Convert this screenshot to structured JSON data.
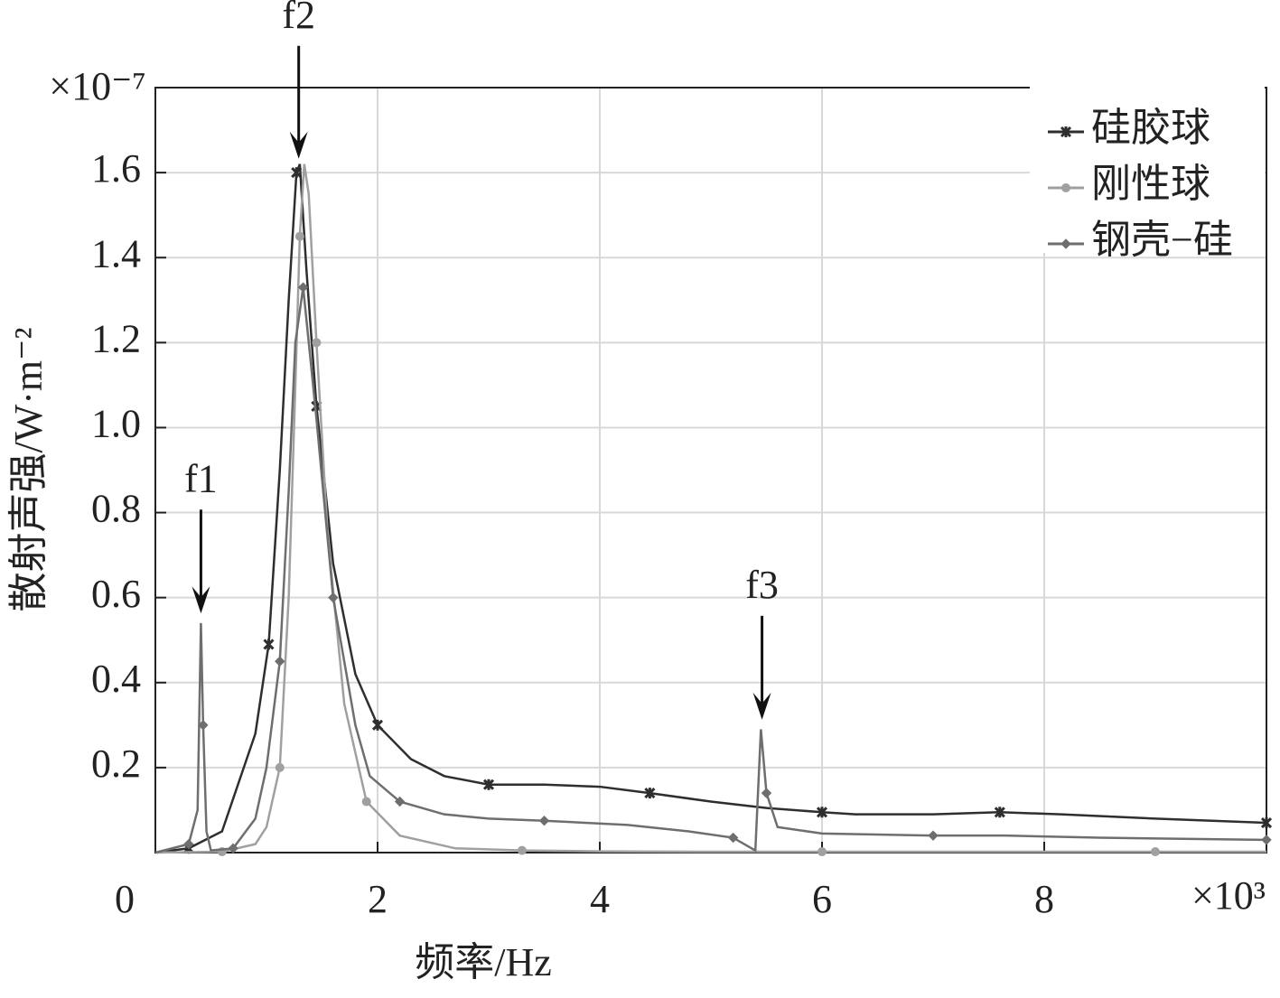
{
  "chart_data": {
    "type": "line",
    "xlabel": "频率/Hz",
    "ylabel": "散射声强/W·m⁻²",
    "x_multiplier": "×10³",
    "y_multiplier": "×10⁻⁷",
    "xlim": [
      0,
      10
    ],
    "xticks": [
      0,
      2,
      4,
      6,
      8
    ],
    "ylim": [
      0,
      1.8
    ],
    "yticks": [
      0.2,
      0.4,
      0.6,
      0.8,
      {
        "value": 1,
        "label": "1.0"
      },
      1.2,
      1.4,
      1.6
    ],
    "grid": true,
    "legend": "upper right",
    "series": [
      {
        "name": "硅胶球",
        "color": "#2e2e2e",
        "marker": "star",
        "x": [
          0,
          0.3,
          0.6,
          0.9,
          1.02,
          1.12,
          1.2,
          1.27,
          1.3,
          1.36,
          1.45,
          1.6,
          1.8,
          2.0,
          2.3,
          2.6,
          3.0,
          3.5,
          4.0,
          4.45,
          5.0,
          5.5,
          6.0,
          6.3,
          7.0,
          7.6,
          8.15,
          9.0,
          10
        ],
        "values": [
          0,
          0.01,
          0.05,
          0.28,
          0.49,
          0.9,
          1.3,
          1.6,
          1.62,
          1.37,
          1.05,
          0.68,
          0.42,
          0.3,
          0.22,
          0.18,
          0.16,
          0.16,
          0.155,
          0.14,
          0.12,
          0.105,
          0.095,
          0.09,
          0.09,
          0.095,
          0.09,
          0.08,
          0.07
        ]
      },
      {
        "name": "刚性球",
        "color": "#a0a0a0",
        "marker": "circle",
        "x": [
          0,
          0.6,
          0.9,
          1.0,
          1.12,
          1.2,
          1.26,
          1.3,
          1.34,
          1.38,
          1.45,
          1.55,
          1.7,
          1.9,
          2.2,
          2.7,
          3.3,
          4.0,
          5.0,
          6.0,
          7.0,
          8.0,
          9.0,
          10
        ],
        "values": [
          0,
          0.002,
          0.02,
          0.06,
          0.2,
          0.6,
          1.1,
          1.45,
          1.62,
          1.55,
          1.2,
          0.75,
          0.35,
          0.12,
          0.04,
          0.01,
          0.005,
          0.003,
          0.002,
          0.002,
          0.002,
          0.002,
          0.002,
          0.002
        ]
      },
      {
        "name": "钢壳−硅",
        "color": "#6e6e6e",
        "marker": "diamond",
        "x": [
          0,
          0.3,
          0.38,
          0.41,
          0.43,
          0.46,
          0.5,
          0.7,
          0.9,
          1.0,
          1.12,
          1.2,
          1.26,
          1.33,
          1.4,
          1.45,
          1.6,
          1.8,
          1.93,
          2.2,
          2.6,
          3.0,
          3.5,
          4.25,
          4.8,
          5.2,
          5.4,
          5.45,
          5.5,
          5.6,
          6.0,
          7.0,
          7.65,
          8.5,
          10
        ],
        "values": [
          0,
          0.02,
          0.1,
          0.54,
          0.3,
          0.05,
          0.005,
          0.01,
          0.08,
          0.2,
          0.45,
          0.85,
          1.2,
          1.33,
          1.15,
          1.02,
          0.6,
          0.3,
          0.18,
          0.12,
          0.09,
          0.08,
          0.075,
          0.065,
          0.05,
          0.035,
          0.005,
          0.29,
          0.14,
          0.06,
          0.045,
          0.04,
          0.04,
          0.035,
          0.03
        ]
      }
    ],
    "annotations": [
      {
        "text": "f1",
        "x": 0.41,
        "y": 0.55
      },
      {
        "text": "f2",
        "x": 1.29,
        "y": 1.62
      },
      {
        "text": "f3",
        "x": 5.46,
        "y": 0.3
      }
    ]
  }
}
